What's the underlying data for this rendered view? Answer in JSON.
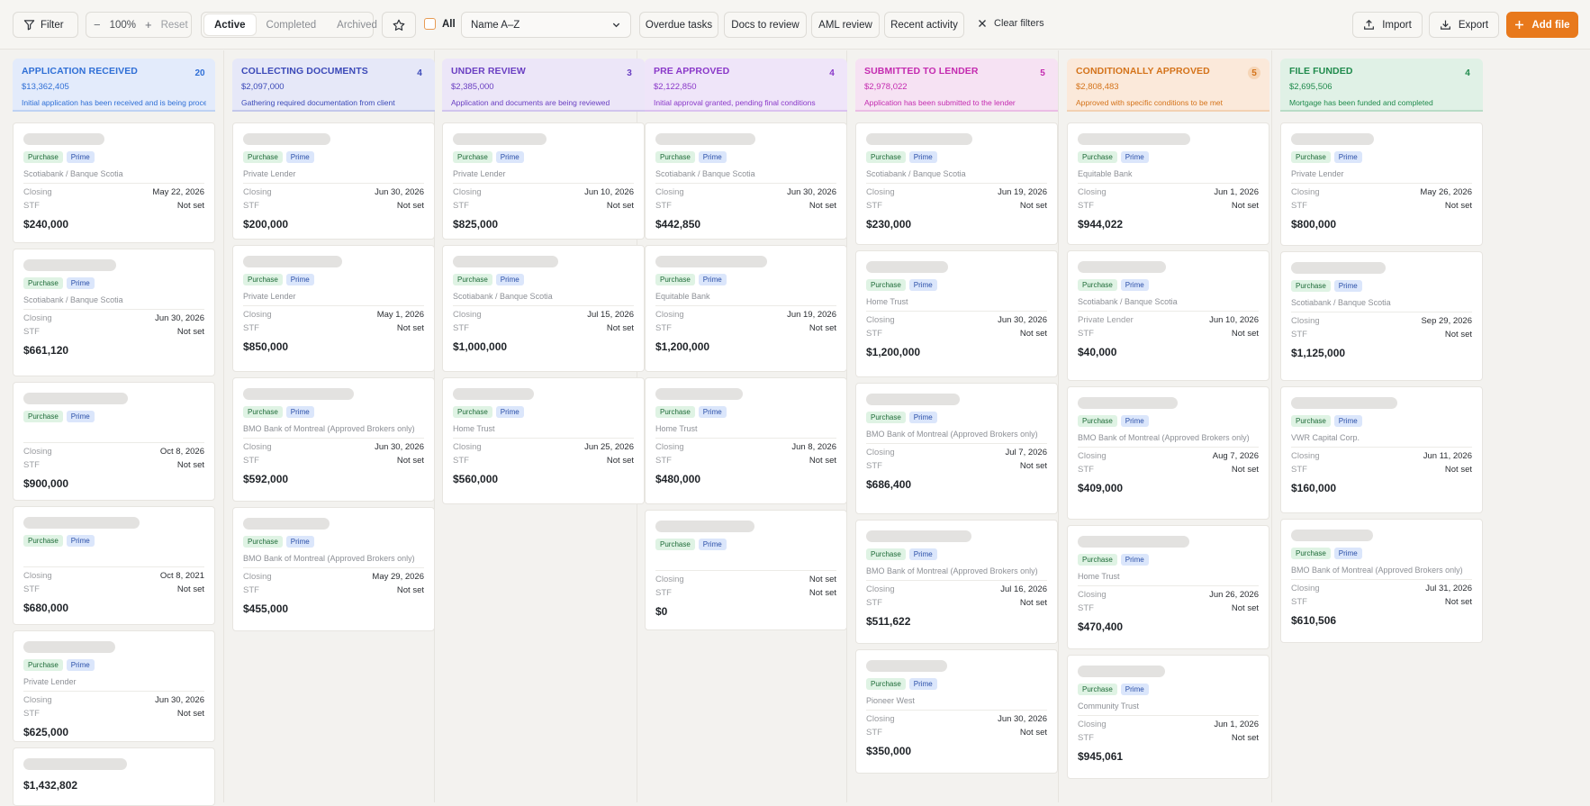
{
  "toolbar": {
    "filter_label": "Filter",
    "zoom_minus": "−",
    "zoom_value": "100%",
    "zoom_plus": "+",
    "zoom_reset": "Reset",
    "tabs": [
      "Active",
      "Completed",
      "Archived"
    ],
    "all_label": "All",
    "sort_value": "Name A–Z",
    "quick_filters": [
      "Overdue tasks",
      "Docs to review",
      "AML review",
      "Recent activity"
    ],
    "clear_filters": "Clear filters",
    "import_label": "Import",
    "export_label": "Export",
    "add_file_label": "Add file"
  },
  "labels": {
    "closing": "Closing",
    "stf": "STF",
    "purchase": "Purchase",
    "prime": "Prime"
  },
  "columns": [
    {
      "title": "APPLICATION RECEIVED",
      "count": "20",
      "amount": "$13,362,405",
      "description": "Initial application has been received and is being processed",
      "accent": "#2f6fd6",
      "cards": [
        {
          "tags": true,
          "lender": "Scotiabank / Banque Scotia",
          "closing": "May 22, 2026",
          "stf": "Not set",
          "amount": "$240,000"
        },
        {
          "tags": true,
          "lender": "Scotiabank / Banque Scotia",
          "closing": "Jun 30, 2026",
          "stf": "Not set",
          "amount": "$661,120"
        },
        {
          "tags": true,
          "lender": "",
          "closing": "Oct 8, 2026",
          "stf": "Not set",
          "amount": "$900,000"
        },
        {
          "tags": true,
          "lender": "",
          "closing": "Oct 8, 2021",
          "stf": "Not set",
          "amount": "$680,000"
        },
        {
          "tags": true,
          "lender": "Private Lender",
          "closing": "Jun 30, 2026",
          "stf": "Not set",
          "amount": "$625,000"
        },
        {
          "tags": false,
          "lender": "",
          "closing": "",
          "stf": "",
          "amount": "$1,432,802"
        }
      ]
    },
    {
      "title": "COLLECTING DOCUMENTS",
      "count": "4",
      "amount": "$2,097,000",
      "description": "Gathering required documentation from client",
      "accent": "#3b49b8",
      "cards": [
        {
          "tags": true,
          "lender": "Private Lender",
          "closing": "Jun 30, 2026",
          "stf": "Not set",
          "amount": "$200,000"
        },
        {
          "tags": true,
          "lender": "Private Lender",
          "closing": "May 1, 2026",
          "stf": "Not set",
          "amount": "$850,000"
        },
        {
          "tags": true,
          "lender": "BMO Bank of Montreal (Approved Brokers only)",
          "closing": "Jun 30, 2026",
          "stf": "Not set",
          "amount": "$592,000"
        },
        {
          "tags": true,
          "lender": "BMO Bank of Montreal (Approved Brokers only)",
          "closing": "May 29, 2026",
          "stf": "Not set",
          "amount": "$455,000"
        }
      ]
    },
    {
      "title": "UNDER REVIEW",
      "count": "3",
      "amount": "$2,385,000",
      "description": "Application and documents are being reviewed",
      "accent": "#6a3fc2",
      "cards": [
        {
          "tags": true,
          "lender": "Private Lender",
          "closing": "Jun 10, 2026",
          "stf": "Not set",
          "amount": "$825,000"
        },
        {
          "tags": true,
          "lender": "Scotiabank / Banque Scotia",
          "closing": "Jul 15, 2026",
          "stf": "Not set",
          "amount": "$1,000,000"
        },
        {
          "tags": true,
          "lender": "Home Trust",
          "closing": "Jun 25, 2026",
          "stf": "Not set",
          "amount": "$560,000"
        }
      ]
    },
    {
      "title": "PRE APPROVED",
      "count": "4",
      "amount": "$2,122,850",
      "description": "Initial approval granted, pending final conditions",
      "accent": "#8a38c9",
      "cards": [
        {
          "tags": true,
          "lender": "Scotiabank / Banque Scotia",
          "closing": "Jun 30, 2026",
          "stf": "Not set",
          "amount": "$442,850"
        },
        {
          "tags": true,
          "lender": "Equitable Bank",
          "closing": "Jun 19, 2026",
          "stf": "Not set",
          "amount": "$1,200,000"
        },
        {
          "tags": true,
          "lender": "Home Trust",
          "closing": "Jun 8, 2026",
          "stf": "Not set",
          "amount": "$480,000"
        },
        {
          "tags": true,
          "lender": "",
          "closing": "Not set",
          "stf": "Not set",
          "amount": "$0"
        }
      ]
    },
    {
      "title": "SUBMITTED TO LENDER",
      "count": "5",
      "amount": "$2,978,022",
      "description": "Application has been submitted to the lender",
      "accent": "#c42bb0",
      "cards": [
        {
          "tags": true,
          "lender": "Scotiabank / Banque Scotia",
          "closing": "Jun 19, 2026",
          "stf": "Not set",
          "amount": "$230,000"
        },
        {
          "tags": true,
          "lender": "Home Trust",
          "closing": "Jun 30, 2026",
          "stf": "Not set",
          "amount": "$1,200,000"
        },
        {
          "tags": true,
          "lender": "BMO Bank of Montreal (Approved Brokers only)",
          "closing": "Jul 7, 2026",
          "stf": "Not set",
          "amount": "$686,400"
        },
        {
          "tags": true,
          "lender": "BMO Bank of Montreal (Approved Brokers only)",
          "closing": "Jul 16, 2026",
          "stf": "Not set",
          "amount": "$511,622"
        },
        {
          "tags": true,
          "lender": "Pioneer West",
          "closing": "Jun 30, 2026",
          "stf": "Not set",
          "amount": "$350,000"
        }
      ]
    },
    {
      "title": "CONDITIONALLY APPROVED",
      "count": "5",
      "amount": "$2,808,483",
      "description": "Approved with specific conditions to be met",
      "accent": "#d4731a",
      "cards": [
        {
          "tags": true,
          "lender": "Equitable Bank",
          "closing": "Jun 1, 2026",
          "stf": "Not set",
          "amount": "$944,022"
        },
        {
          "tags": true,
          "lender": "Scotiabank / Banque Scotia",
          "lender2": "Private Lender",
          "closing": "Jun 10, 2026",
          "stf": "Not set",
          "amount": "$40,000"
        },
        {
          "tags": true,
          "lender": "BMO Bank of Montreal (Approved Brokers only)",
          "closing": "Aug 7, 2026",
          "stf": "Not set",
          "amount": "$409,000"
        },
        {
          "tags": true,
          "lender": "Home Trust",
          "closing": "Jun 26, 2026",
          "stf": "Not set",
          "amount": "$470,400"
        },
        {
          "tags": true,
          "lender": "Community Trust",
          "closing": "Jun 1, 2026",
          "stf": "Not set",
          "amount": "$945,061"
        }
      ]
    },
    {
      "title": "FILE FUNDED",
      "count": "4",
      "amount": "$2,695,506",
      "description": "Mortgage has been funded and completed",
      "accent": "#1f8a4c",
      "cards": [
        {
          "tags": true,
          "lender": "Private Lender",
          "closing": "May 26, 2026",
          "stf": "Not set",
          "amount": "$800,000"
        },
        {
          "tags": true,
          "lender": "Scotiabank / Banque Scotia",
          "closing": "Sep 29, 2026",
          "stf": "Not set",
          "amount": "$1,125,000"
        },
        {
          "tags": true,
          "lender": "VWR Capital Corp.",
          "closing": "Jun 11, 2026",
          "stf": "Not set",
          "amount": "$160,000"
        },
        {
          "tags": true,
          "lender": "BMO Bank of Montreal (Approved Brokers only)",
          "closing": "Jul 31, 2026",
          "stf": "Not set",
          "amount": "$610,506"
        }
      ]
    }
  ],
  "colors": {
    "header_bgs": [
      "#e3ebfb",
      "#e6e8f8",
      "#ece6f8",
      "#efe5f9",
      "#f6e2f3",
      "#fbe9da",
      "#e0f1e6"
    ],
    "add_file": "#e8791c"
  }
}
